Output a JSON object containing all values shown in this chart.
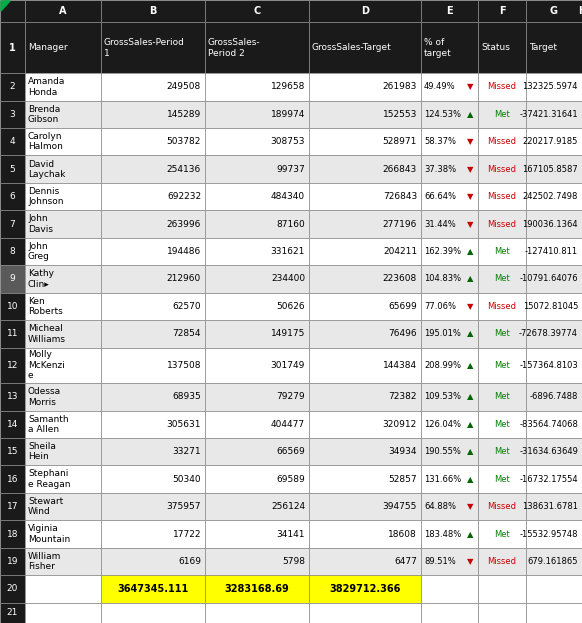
{
  "rows": [
    {
      "num": "2",
      "manager": "Amanda\nHonda",
      "b": "249508",
      "c": "129658",
      "d": "261983",
      "e": "49.49%",
      "arrow": "▼",
      "status": "Missed",
      "h": "132325.5974",
      "h_yellow": true
    },
    {
      "num": "3",
      "manager": "Brenda\nGibson",
      "b": "145289",
      "c": "189974",
      "d": "152553",
      "e": "124.53%",
      "arrow": "▲",
      "status": "Met",
      "h": "-37421.31641",
      "h_yellow": false
    },
    {
      "num": "4",
      "manager": "Carolyn\nHalmon",
      "b": "503782",
      "c": "308753",
      "d": "528971",
      "e": "58.37%",
      "arrow": "▼",
      "status": "Missed",
      "h": "220217.9185",
      "h_yellow": true
    },
    {
      "num": "5",
      "manager": "David\nLaychak",
      "b": "254136",
      "c": "99737",
      "d": "266843",
      "e": "37.38%",
      "arrow": "▼",
      "status": "Missed",
      "h": "167105.8587",
      "h_yellow": true
    },
    {
      "num": "6",
      "manager": "Dennis\nJohnson",
      "b": "692232",
      "c": "484340",
      "d": "726843",
      "e": "66.64%",
      "arrow": "▼",
      "status": "Missed",
      "h": "242502.7498",
      "h_yellow": true
    },
    {
      "num": "7",
      "manager": "John\nDavis",
      "b": "263996",
      "c": "87160",
      "d": "277196",
      "e": "31.44%",
      "arrow": "▼",
      "status": "Missed",
      "h": "190036.1364",
      "h_yellow": true
    },
    {
      "num": "8",
      "manager": "John\nGreg",
      "b": "194486",
      "c": "331621",
      "d": "204211",
      "e": "162.39%",
      "arrow": "▲",
      "status": "Met",
      "h": "-127410.811",
      "h_yellow": false
    },
    {
      "num": "9",
      "manager": "Kathy\nClin▸",
      "b": "212960",
      "c": "234400",
      "d": "223608",
      "e": "104.83%",
      "arrow": "▲",
      "status": "Met",
      "h": "-10791.64076",
      "h_yellow": false
    },
    {
      "num": "10",
      "manager": "Ken\nRoberts",
      "b": "62570",
      "c": "50626",
      "d": "65699",
      "e": "77.06%",
      "arrow": "▼",
      "status": "Missed",
      "h": "15072.81045",
      "h_yellow": true
    },
    {
      "num": "11",
      "manager": "Micheal\nWilliams",
      "b": "72854",
      "c": "149175",
      "d": "76496",
      "e": "195.01%",
      "arrow": "▲",
      "status": "Met",
      "h": "-72678.39774",
      "h_yellow": false
    },
    {
      "num": "12",
      "manager": "Molly\nMcKenzi\ne",
      "b": "137508",
      "c": "301749",
      "d": "144384",
      "e": "208.99%",
      "arrow": "▲",
      "status": "Met",
      "h": "-157364.8103",
      "h_yellow": false
    },
    {
      "num": "13",
      "manager": "Odessa\nMorris",
      "b": "68935",
      "c": "79279",
      "d": "72382",
      "e": "109.53%",
      "arrow": "▲",
      "status": "Met",
      "h": "-6896.7488",
      "h_yellow": false
    },
    {
      "num": "14",
      "manager": "Samanth\na Allen",
      "b": "305631",
      "c": "404477",
      "d": "320912",
      "e": "126.04%",
      "arrow": "▲",
      "status": "Met",
      "h": "-83564.74068",
      "h_yellow": false
    },
    {
      "num": "15",
      "manager": "Sheila\nHein",
      "b": "33271",
      "c": "66569",
      "d": "34934",
      "e": "190.55%",
      "arrow": "▲",
      "status": "Met",
      "h": "-31634.63649",
      "h_yellow": false
    },
    {
      "num": "16",
      "manager": "Stephani\ne Reagan",
      "b": "50340",
      "c": "69589",
      "d": "52857",
      "e": "131.66%",
      "arrow": "▲",
      "status": "Met",
      "h": "-16732.17554",
      "h_yellow": false
    },
    {
      "num": "17",
      "manager": "Stewart\nWind",
      "b": "375957",
      "c": "256124",
      "d": "394755",
      "e": "64.88%",
      "arrow": "▼",
      "status": "Missed",
      "h": "138631.6781",
      "h_yellow": true
    },
    {
      "num": "18",
      "manager": "Viginia\nMountain",
      "b": "17722",
      "c": "34141",
      "d": "18608",
      "e": "183.48%",
      "arrow": "▲",
      "status": "Met",
      "h": "-15532.95748",
      "h_yellow": false
    },
    {
      "num": "19",
      "manager": "William\nFisher",
      "b": "6169",
      "c": "5798",
      "d": "6477",
      "e": "89.51%",
      "arrow": "▼",
      "status": "Missed",
      "h": "679.161865",
      "h_yellow": false
    }
  ],
  "total_row": {
    "b": "3647345.111",
    "c": "3283168.69",
    "d": "3829712.366"
  },
  "colors": {
    "col_header_bg": "#1a1a1a",
    "col_header_fg": "#ffffff",
    "row_num_bg": "#1a1a1a",
    "row_num_fg": "#ffffff",
    "row9_num_bg": "#5a5a5a",
    "header_data_bg": "#1a1a1a",
    "header_data_fg": "#ffffff",
    "even_row_bg": "#e8e8e8",
    "odd_row_bg": "#ffffff",
    "yellow_bg": "#ffff00",
    "missed_color": "#cc0000",
    "met_color": "#008000",
    "arrow_down": "#cc0000",
    "arrow_up": "#006600",
    "grid_color": "#888888",
    "total_bg": "#ffff00",
    "total_fg": "#000000",
    "corner_triangle": "#00aa44"
  },
  "col_letters": [
    "",
    "A",
    "B",
    "C",
    "D",
    "E",
    "F",
    "G",
    "H"
  ],
  "header_texts": [
    "Manager",
    "GrossSales-Period\n1",
    "GrossSales-\nPeriod 2",
    "GrossSales-Target",
    "% of\ntarget",
    "Status",
    "Target",
    ""
  ]
}
